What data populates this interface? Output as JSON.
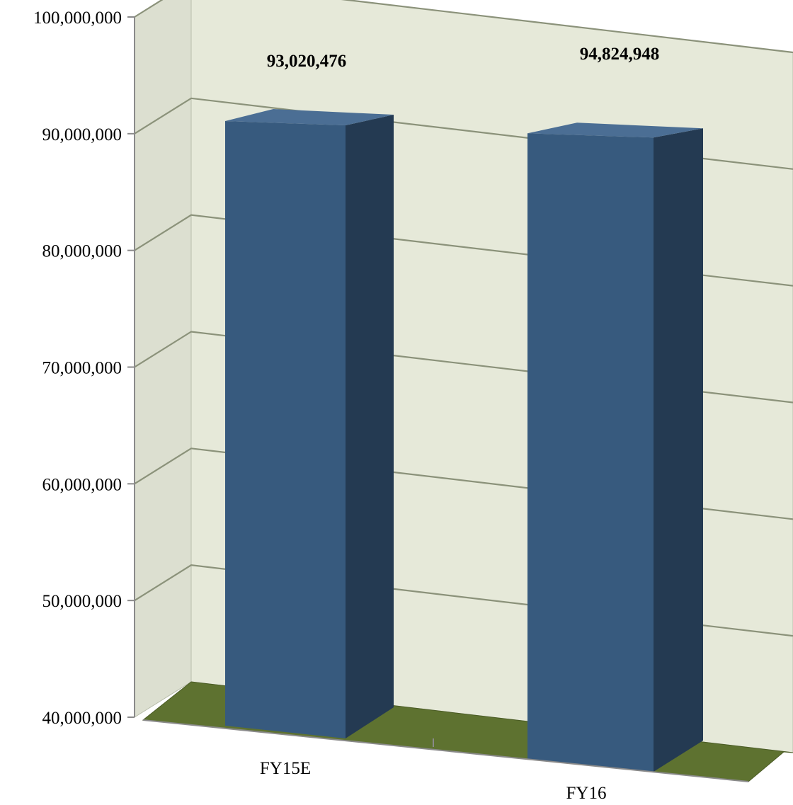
{
  "chart_data": {
    "type": "bar",
    "style": "3d-column",
    "title": "",
    "xlabel": "",
    "ylabel": "",
    "categories": [
      "FY15E",
      "FY16"
    ],
    "values": [
      93020476,
      94824948
    ],
    "data_labels": [
      "93,020,476",
      "94,824,948"
    ],
    "ylim": [
      40000000,
      100000000
    ],
    "yticks": [
      40000000,
      50000000,
      60000000,
      70000000,
      80000000,
      90000000,
      100000000
    ],
    "ytick_labels": [
      "40,000,000",
      "50,000,000",
      "60,000,000",
      "70,000,000",
      "80,000,000",
      "90,000,000",
      "100,000,000"
    ],
    "grid": true,
    "legend": "none",
    "colors": {
      "bar_front": "#375a7e",
      "bar_side": "#243a52",
      "bar_top": "#4b6e94",
      "back_wall": "#e6e9d9",
      "side_wall": "#dcdfd0",
      "floor": "#5e7230",
      "gridline": "#8b927a"
    }
  }
}
